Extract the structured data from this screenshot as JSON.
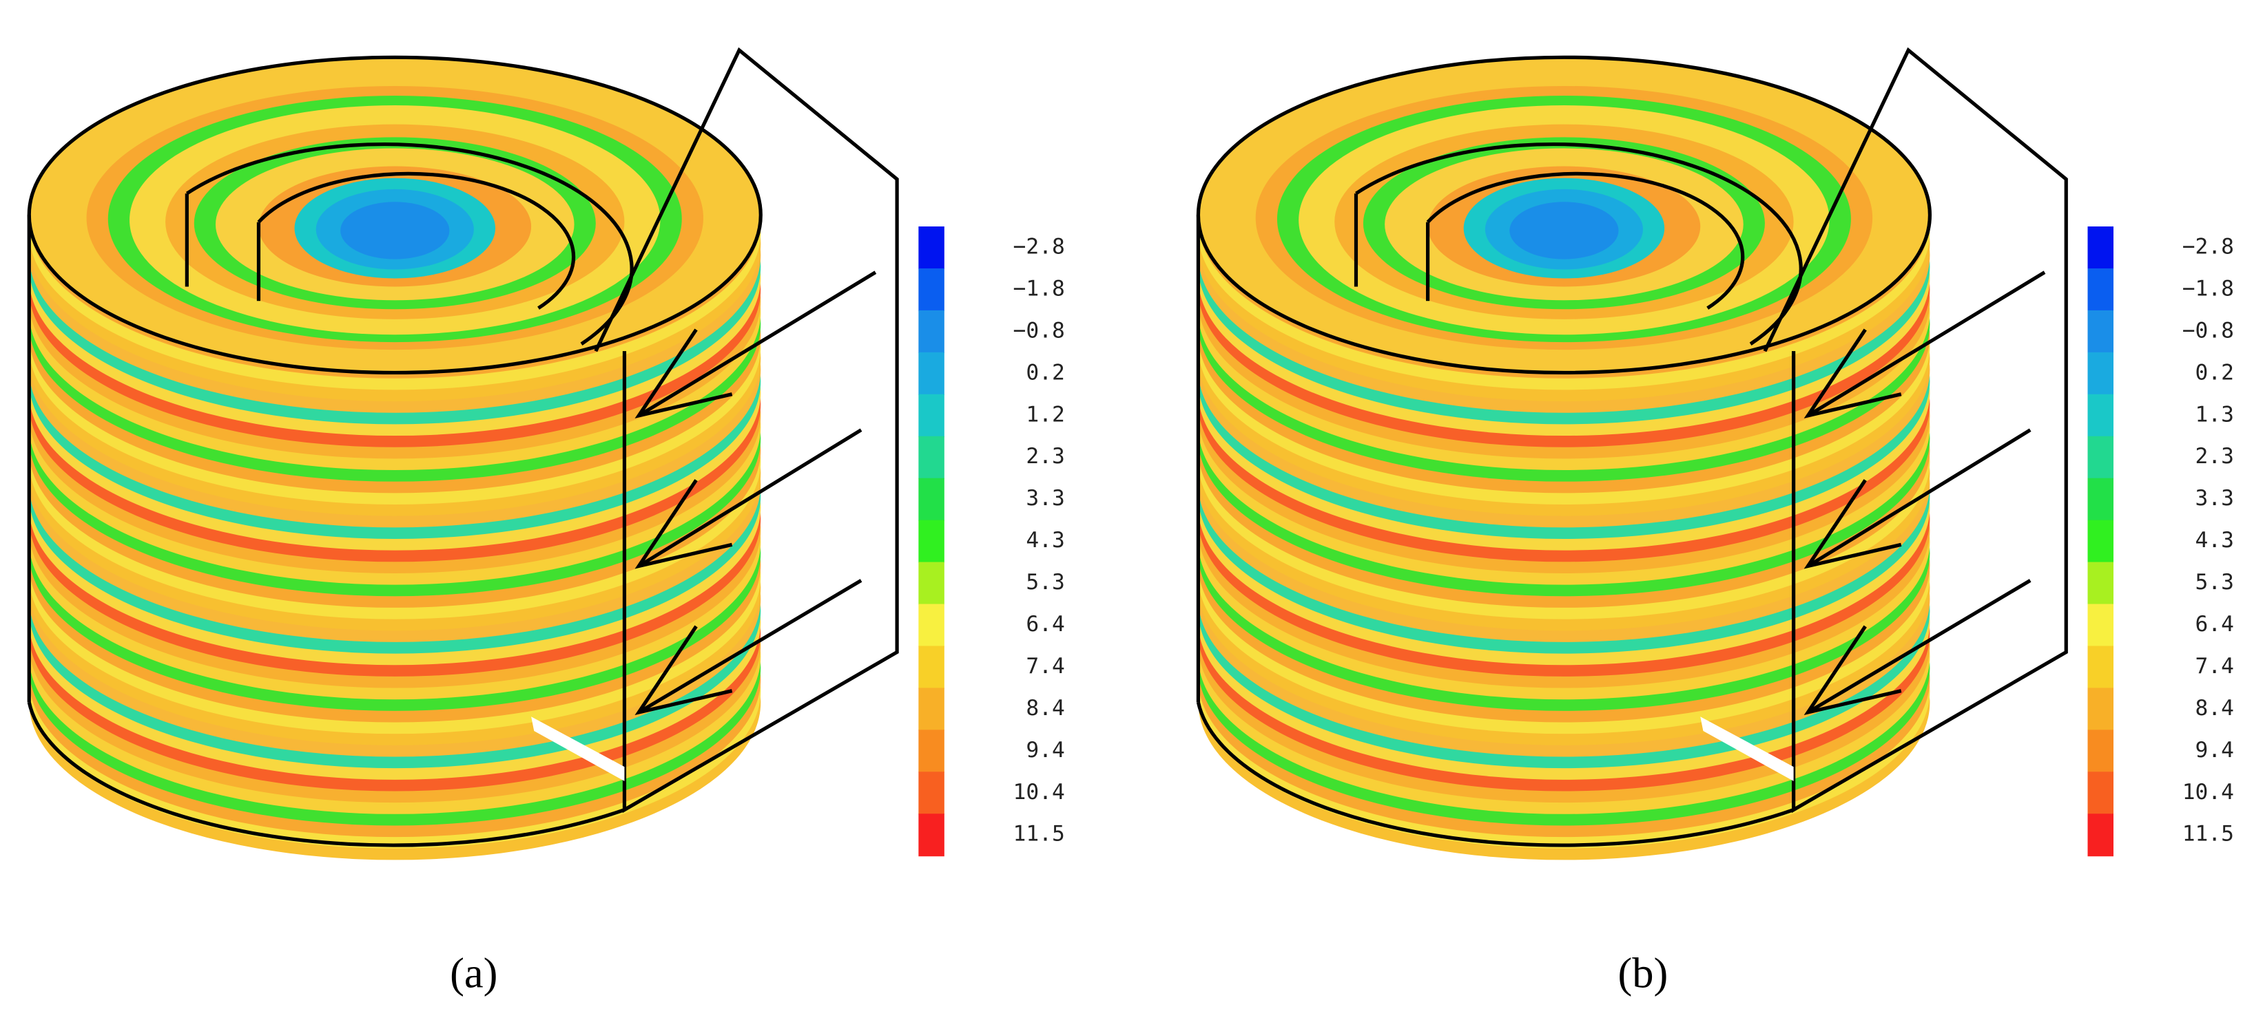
{
  "panels": [
    {
      "label": "(a)",
      "legend": [
        {
          "label": "−2.8",
          "color": "#0014f0"
        },
        {
          "label": "−1.8",
          "color": "#0a5ef0"
        },
        {
          "label": "−0.8",
          "color": "#1a8ee8"
        },
        {
          "label": "0.2",
          "color": "#1aaae0"
        },
        {
          "label": "1.2",
          "color": "#1ac8c8"
        },
        {
          "label": "2.3",
          "color": "#22d890"
        },
        {
          "label": "3.3",
          "color": "#22e048"
        },
        {
          "label": "4.3",
          "color": "#30f020"
        },
        {
          "label": "5.3",
          "color": "#a8f020"
        },
        {
          "label": "6.4",
          "color": "#f8f040"
        },
        {
          "label": "7.4",
          "color": "#f8d028"
        },
        {
          "label": "8.4",
          "color": "#f8b028"
        },
        {
          "label": "9.4",
          "color": "#f88c20"
        },
        {
          "label": "10.4",
          "color": "#f86020"
        },
        {
          "label": "11.5",
          "color": "#f82020"
        }
      ]
    },
    {
      "label": "(b)",
      "legend": [
        {
          "label": "−2.8",
          "color": "#0014f0"
        },
        {
          "label": "−1.8",
          "color": "#0a5ef0"
        },
        {
          "label": "−0.8",
          "color": "#1a8ee8"
        },
        {
          "label": "0.2",
          "color": "#1aaae0"
        },
        {
          "label": "1.3",
          "color": "#1ac8c8"
        },
        {
          "label": "2.3",
          "color": "#22d890"
        },
        {
          "label": "3.3",
          "color": "#22e048"
        },
        {
          "label": "4.3",
          "color": "#30f020"
        },
        {
          "label": "5.3",
          "color": "#a8f020"
        },
        {
          "label": "6.4",
          "color": "#f8f040"
        },
        {
          "label": "7.4",
          "color": "#f8d028"
        },
        {
          "label": "8.4",
          "color": "#f8b028"
        },
        {
          "label": "9.4",
          "color": "#f88c20"
        },
        {
          "label": "10.4",
          "color": "#f86020"
        },
        {
          "label": "11.5",
          "color": "#f82020"
        }
      ]
    }
  ]
}
